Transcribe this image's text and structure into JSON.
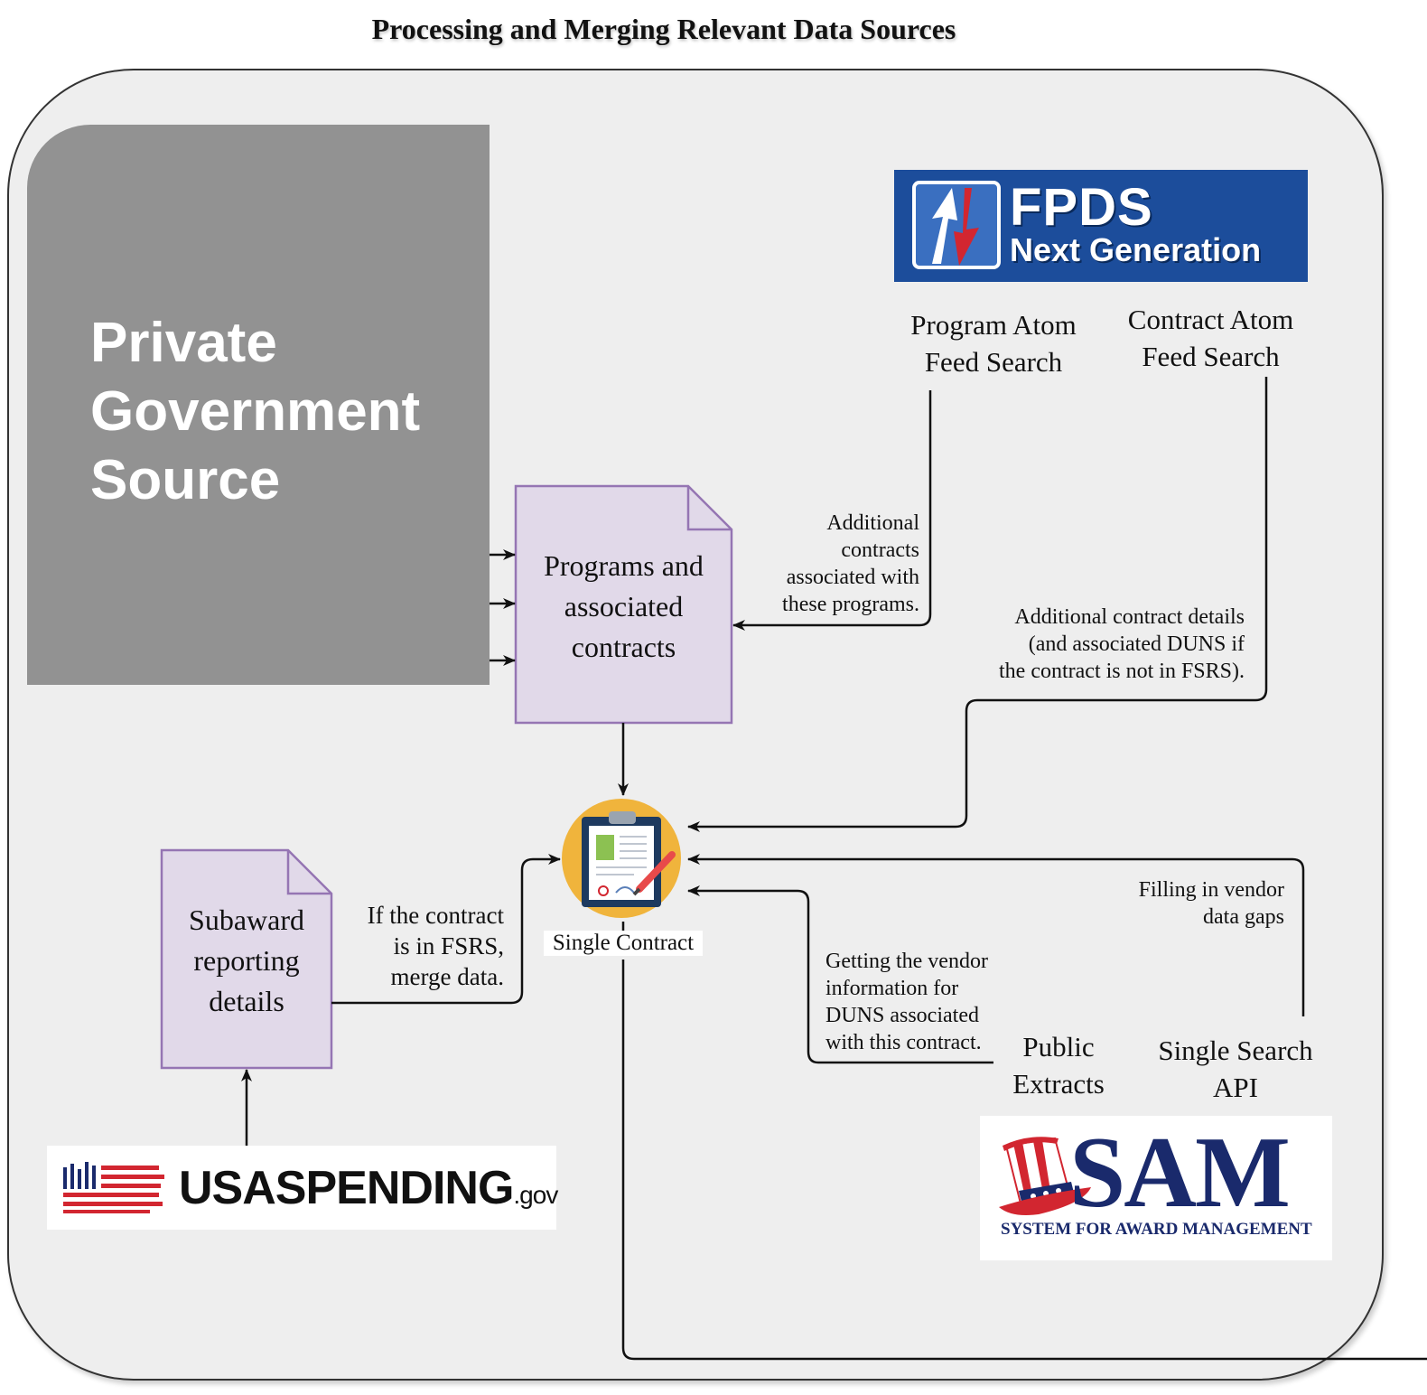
{
  "title": "Processing and Merging Relevant Data Sources",
  "private_source": {
    "line1": "Private",
    "line2": "Government",
    "line3": "Source"
  },
  "fpds_logo": {
    "line1": "FPDS",
    "line2": "Next Generation"
  },
  "program_atom": {
    "line1": "Program Atom",
    "line2": "Feed Search"
  },
  "contract_atom": {
    "line1": "Contract Atom",
    "line2": "Feed Search"
  },
  "programs_doc": {
    "line1": "Programs and",
    "line2": "associated",
    "line3": "contracts"
  },
  "additional_contracts_label": {
    "line1": "Additional",
    "line2": "contracts",
    "line3": "associated with",
    "line4": "these programs."
  },
  "additional_details_label": {
    "line1": "Additional contract details",
    "line2": "(and associated DUNS if",
    "line3": "the contract is not in FSRS)."
  },
  "single_contract_label": "Single Contract",
  "subaward_doc": {
    "line1": "Subaward",
    "line2": "reporting",
    "line3": "details"
  },
  "fsrs_label": {
    "line1": "If the contract",
    "line2": "is in FSRS,",
    "line3": "merge data."
  },
  "vendor_info_label": {
    "line1": "Getting the vendor",
    "line2": "information for",
    "line3": "DUNS associated",
    "line4": "with this contract."
  },
  "vendor_gaps_label": {
    "line1": "Filling in vendor",
    "line2": "data gaps"
  },
  "public_extracts": {
    "line1": "Public",
    "line2": "Extracts"
  },
  "single_search": {
    "line1": "Single Search",
    "line2": "API"
  },
  "usaspending_logo": {
    "main": "USASPENDING",
    "suffix": ".gov"
  },
  "sam_logo": {
    "main": "SAM",
    "sub": "SYSTEM FOR AWARD MANAGEMENT"
  },
  "colors": {
    "doc_fill": "#e1d9e9",
    "doc_stroke": "#9575b3",
    "fpds_blue": "#1c4d9b",
    "private_gray": "#929292",
    "sam_navy": "#1a2a6c",
    "flag_red": "#d22630"
  }
}
